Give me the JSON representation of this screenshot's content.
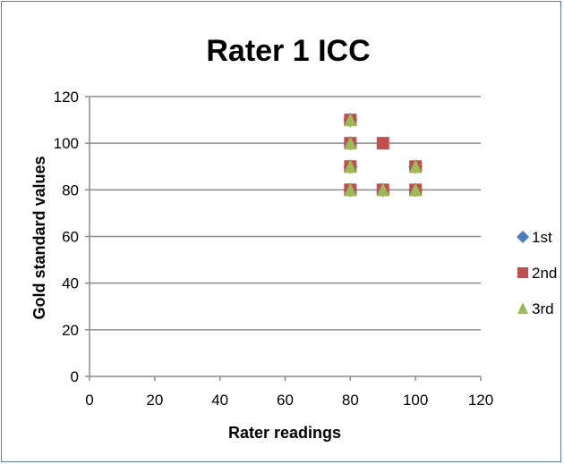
{
  "chart_data": {
    "type": "scatter",
    "title": "Rater 1 ICC",
    "xlabel": "Rater readings",
    "ylabel": "Gold standard values",
    "xlim": [
      0,
      120
    ],
    "ylim": [
      0,
      120
    ],
    "xticks": [
      0,
      20,
      40,
      60,
      80,
      100,
      120
    ],
    "yticks": [
      0,
      20,
      40,
      60,
      80,
      100,
      120
    ],
    "grid": "horizontal",
    "legend_position": "right",
    "series": [
      {
        "name": "1st",
        "marker": "diamond",
        "color": "#4a7ebb",
        "points": [
          [
            80,
            80
          ],
          [
            80,
            90
          ],
          [
            80,
            100
          ],
          [
            80,
            110
          ],
          [
            90,
            80
          ],
          [
            100,
            80
          ],
          [
            100,
            90
          ]
        ]
      },
      {
        "name": "2nd",
        "marker": "square",
        "color": "#c0504d",
        "points": [
          [
            80,
            80
          ],
          [
            80,
            90
          ],
          [
            80,
            100
          ],
          [
            80,
            110
          ],
          [
            90,
            80
          ],
          [
            90,
            100
          ],
          [
            100,
            80
          ],
          [
            100,
            90
          ]
        ]
      },
      {
        "name": "3rd",
        "marker": "triangle",
        "color": "#9bbb59",
        "points": [
          [
            80,
            80
          ],
          [
            80,
            90
          ],
          [
            80,
            100
          ],
          [
            80,
            110
          ],
          [
            90,
            80
          ],
          [
            100,
            80
          ],
          [
            100,
            90
          ]
        ]
      }
    ]
  }
}
